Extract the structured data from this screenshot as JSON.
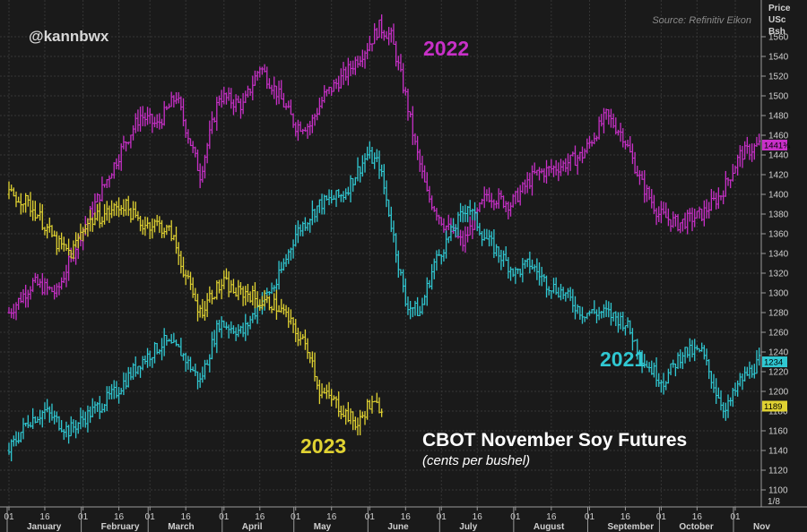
{
  "watermark": "@kannbwx",
  "source": "Source: Refinitiv Eikon",
  "axis_header": [
    "Price",
    "USc",
    "Bsh"
  ],
  "corner_label": "1/8",
  "colors": {
    "2022": "#c830c8",
    "2021": "#30c8d2",
    "2023": "#e0d232",
    "background": "#1a1a1a",
    "grid": "#3c3c3c"
  },
  "chart_data": {
    "type": "line",
    "title": "CBOT November Soy Futures",
    "subtitle": "(cents per bushel)",
    "ylim": [
      1090,
      1600
    ],
    "yticks": [
      1100,
      1120,
      1140,
      1160,
      1180,
      1200,
      1220,
      1240,
      1260,
      1280,
      1300,
      1320,
      1340,
      1360,
      1380,
      1400,
      1420,
      1440,
      1460,
      1480,
      1500,
      1520,
      1540,
      1560
    ],
    "xlim": [
      0,
      304
    ],
    "x_ticks": [
      {
        "x": 0,
        "label": "01"
      },
      {
        "x": 15,
        "label": "16"
      },
      {
        "x": 31,
        "label": "01"
      },
      {
        "x": 46,
        "label": "16"
      },
      {
        "x": 59,
        "label": "01"
      },
      {
        "x": 74,
        "label": "16"
      },
      {
        "x": 90,
        "label": "01"
      },
      {
        "x": 105,
        "label": "16"
      },
      {
        "x": 120,
        "label": "01"
      },
      {
        "x": 135,
        "label": "16"
      },
      {
        "x": 151,
        "label": "01"
      },
      {
        "x": 166,
        "label": "16"
      },
      {
        "x": 181,
        "label": "01"
      },
      {
        "x": 196,
        "label": "16"
      },
      {
        "x": 212,
        "label": "01"
      },
      {
        "x": 227,
        "label": "16"
      },
      {
        "x": 243,
        "label": "01"
      },
      {
        "x": 258,
        "label": "16"
      },
      {
        "x": 273,
        "label": "01"
      },
      {
        "x": 288,
        "label": "16"
      },
      {
        "x": 304,
        "label": "01"
      }
    ],
    "months": [
      {
        "x": 0,
        "label": "January"
      },
      {
        "x": 31,
        "label": "February"
      },
      {
        "x": 59,
        "label": "March"
      },
      {
        "x": 90,
        "label": "April"
      },
      {
        "x": 120,
        "label": "May"
      },
      {
        "x": 151,
        "label": "June"
      },
      {
        "x": 181,
        "label": "July"
      },
      {
        "x": 212,
        "label": "August"
      },
      {
        "x": 243,
        "label": "September"
      },
      {
        "x": 273,
        "label": "October"
      },
      {
        "x": 304,
        "label": "Nov"
      }
    ],
    "series": [
      {
        "name": "2022",
        "color": "#c830c8",
        "last_label": "1441¾",
        "points": [
          [
            0,
            1280
          ],
          [
            10,
            1310
          ],
          [
            20,
            1300
          ],
          [
            30,
            1360
          ],
          [
            40,
            1410
          ],
          [
            48,
            1450
          ],
          [
            55,
            1480
          ],
          [
            62,
            1470
          ],
          [
            70,
            1500
          ],
          [
            80,
            1420
          ],
          [
            88,
            1500
          ],
          [
            98,
            1490
          ],
          [
            105,
            1530
          ],
          [
            113,
            1500
          ],
          [
            120,
            1470
          ],
          [
            126,
            1470
          ],
          [
            132,
            1500
          ],
          [
            140,
            1520
          ],
          [
            150,
            1550
          ],
          [
            155,
            1570
          ],
          [
            160,
            1560
          ],
          [
            166,
            1500
          ],
          [
            170,
            1450
          ],
          [
            175,
            1400
          ],
          [
            182,
            1370
          ],
          [
            190,
            1350
          ],
          [
            200,
            1400
          ],
          [
            210,
            1390
          ],
          [
            220,
            1420
          ],
          [
            232,
            1430
          ],
          [
            240,
            1440
          ],
          [
            250,
            1480
          ],
          [
            257,
            1460
          ],
          [
            265,
            1410
          ],
          [
            272,
            1380
          ],
          [
            280,
            1370
          ],
          [
            290,
            1380
          ],
          [
            298,
            1400
          ],
          [
            306,
            1440
          ],
          [
            314,
            1450
          ]
        ]
      },
      {
        "name": "2021",
        "color": "#30c8d2",
        "last_label": "1234",
        "points": [
          [
            0,
            1140
          ],
          [
            8,
            1170
          ],
          [
            15,
            1180
          ],
          [
            25,
            1160
          ],
          [
            35,
            1180
          ],
          [
            45,
            1200
          ],
          [
            55,
            1230
          ],
          [
            65,
            1250
          ],
          [
            72,
            1240
          ],
          [
            80,
            1210
          ],
          [
            88,
            1270
          ],
          [
            98,
            1260
          ],
          [
            105,
            1290
          ],
          [
            112,
            1310
          ],
          [
            120,
            1360
          ],
          [
            130,
            1390
          ],
          [
            140,
            1400
          ],
          [
            150,
            1440
          ],
          [
            155,
            1430
          ],
          [
            160,
            1370
          ],
          [
            166,
            1290
          ],
          [
            172,
            1280
          ],
          [
            178,
            1330
          ],
          [
            185,
            1360
          ],
          [
            192,
            1390
          ],
          [
            198,
            1360
          ],
          [
            205,
            1340
          ],
          [
            212,
            1320
          ],
          [
            218,
            1330
          ],
          [
            225,
            1310
          ],
          [
            232,
            1300
          ],
          [
            240,
            1280
          ],
          [
            250,
            1280
          ],
          [
            258,
            1270
          ],
          [
            266,
            1230
          ],
          [
            274,
            1210
          ],
          [
            282,
            1240
          ],
          [
            290,
            1240
          ],
          [
            296,
            1200
          ],
          [
            300,
            1180
          ],
          [
            306,
            1210
          ],
          [
            314,
            1230
          ]
        ]
      },
      {
        "name": "2023",
        "color": "#e0d232",
        "last_label": "1189",
        "points": [
          [
            0,
            1400
          ],
          [
            6,
            1395
          ],
          [
            12,
            1380
          ],
          [
            20,
            1350
          ],
          [
            26,
            1340
          ],
          [
            32,
            1370
          ],
          [
            40,
            1380
          ],
          [
            48,
            1390
          ],
          [
            55,
            1370
          ],
          [
            62,
            1370
          ],
          [
            68,
            1360
          ],
          [
            75,
            1310
          ],
          [
            80,
            1280
          ],
          [
            85,
            1300
          ],
          [
            90,
            1310
          ],
          [
            95,
            1300
          ],
          [
            100,
            1300
          ],
          [
            105,
            1290
          ],
          [
            110,
            1290
          ],
          [
            115,
            1280
          ],
          [
            120,
            1260
          ],
          [
            126,
            1240
          ],
          [
            130,
            1200
          ],
          [
            136,
            1190
          ],
          [
            142,
            1175
          ],
          [
            146,
            1165
          ],
          [
            150,
            1185
          ],
          [
            156,
            1185
          ]
        ]
      }
    ]
  }
}
